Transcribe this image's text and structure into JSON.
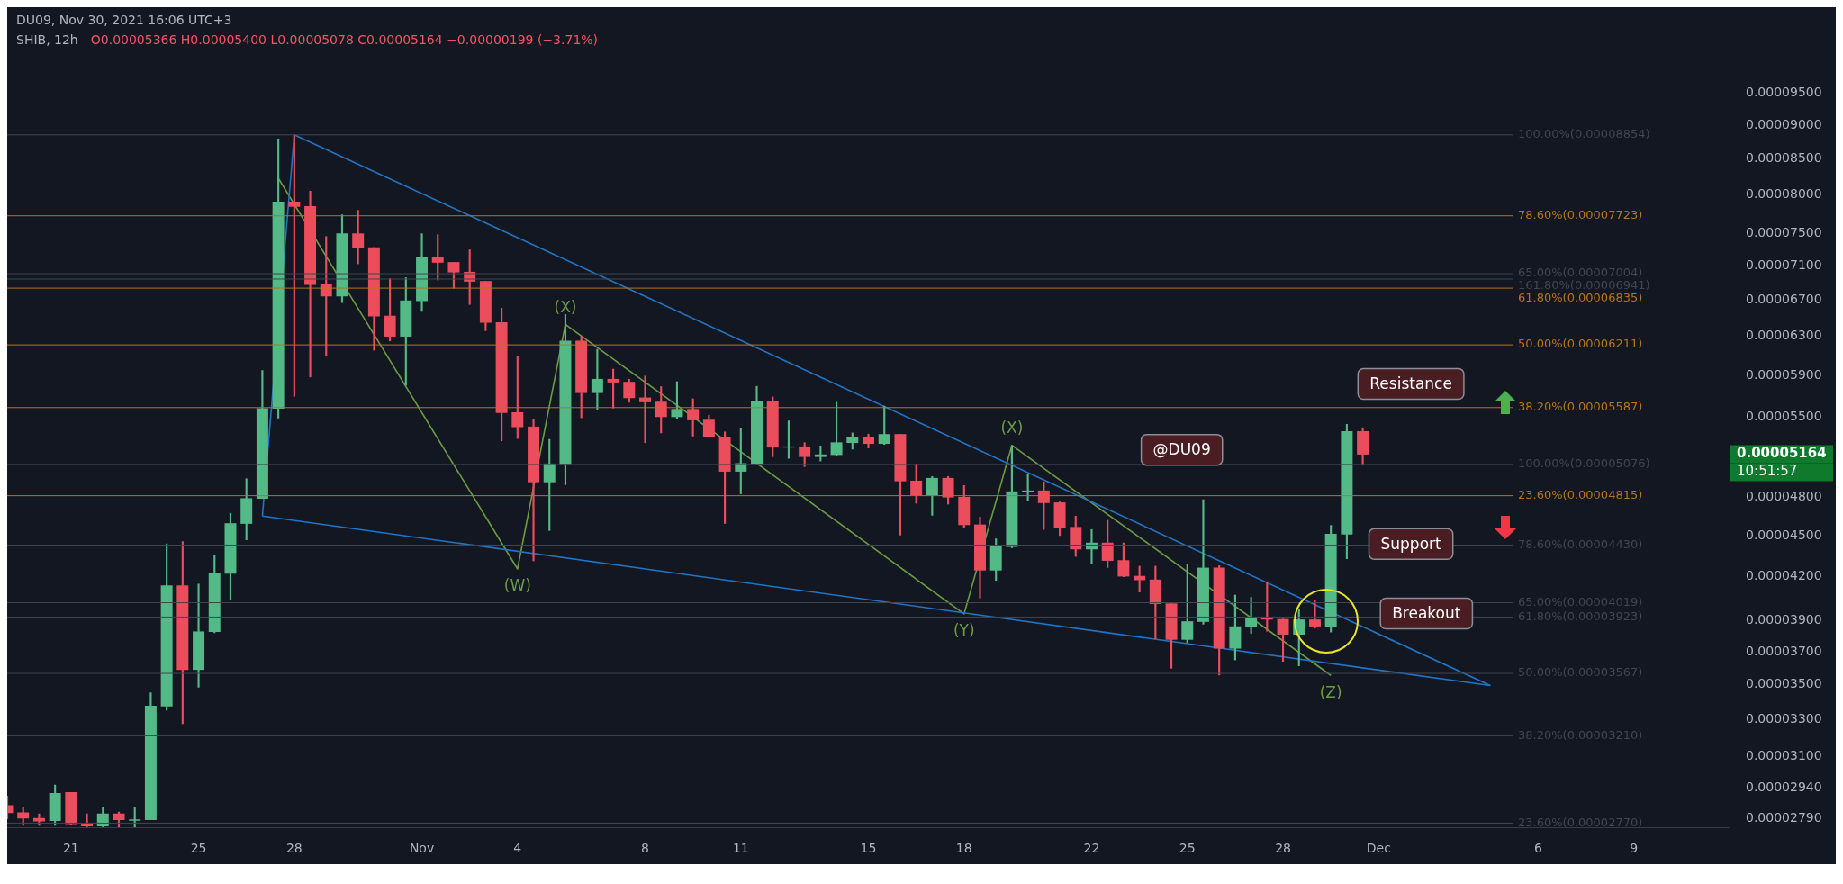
{
  "chart_data": {
    "type": "candlestick",
    "title": "SHIB, 12h",
    "subtitle": "O0.00005366 H0.00005400 L0.00005078 C0.00005164 −0.00000199 (−3.71%)",
    "x": [
      "2021-10-19",
      "2021-10-19T12:00",
      "2021-10-20",
      "2021-10-20T12:00",
      "2021-10-21",
      "2021-10-21T12:00",
      "2021-10-22",
      "2021-10-22T12:00",
      "2021-10-23",
      "2021-10-23T12:00",
      "2021-10-24",
      "2021-10-24T12:00",
      "2021-10-25",
      "2021-10-25T12:00",
      "2021-10-26",
      "2021-10-26T12:00",
      "2021-10-27",
      "2021-10-27T12:00",
      "2021-10-28",
      "2021-10-28T12:00",
      "2021-10-29",
      "2021-10-29T12:00",
      "2021-10-30",
      "2021-10-30T12:00",
      "2021-10-31",
      "2021-10-31T12:00",
      "2021-11-01",
      "2021-11-01T12:00",
      "2021-11-02",
      "2021-11-02T12:00",
      "2021-11-03",
      "2021-11-03T12:00",
      "2021-11-04",
      "2021-11-04T12:00",
      "2021-11-05",
      "2021-11-05T12:00",
      "2021-11-06",
      "2021-11-06T12:00",
      "2021-11-07",
      "2021-11-07T12:00",
      "2021-11-08",
      "2021-11-08T12:00",
      "2021-11-09",
      "2021-11-09T12:00",
      "2021-11-10",
      "2021-11-10T12:00",
      "2021-11-11",
      "2021-11-11T12:00",
      "2021-11-12",
      "2021-11-12T12:00",
      "2021-11-13",
      "2021-11-13T12:00",
      "2021-11-14",
      "2021-11-14T12:00",
      "2021-11-15",
      "2021-11-15T12:00",
      "2021-11-16",
      "2021-11-16T12:00",
      "2021-11-17",
      "2021-11-17T12:00",
      "2021-11-18",
      "2021-11-18T12:00",
      "2021-11-19",
      "2021-11-19T12:00",
      "2021-11-20",
      "2021-11-20T12:00",
      "2021-11-21",
      "2021-11-21T12:00",
      "2021-11-22",
      "2021-11-22T12:00",
      "2021-11-23",
      "2021-11-23T12:00",
      "2021-11-24",
      "2021-11-24T12:00",
      "2021-11-25",
      "2021-11-25T12:00",
      "2021-11-26",
      "2021-11-26T12:00",
      "2021-11-27",
      "2021-11-27T12:00",
      "2021-11-28",
      "2021-11-28T12:00",
      "2021-11-29",
      "2021-11-29T12:00",
      "2021-11-30",
      "2021-11-30T12:00"
    ],
    "ohlc": [
      [
        2.854e-05,
        2.9e-05,
        2.79e-05,
        2.819e-05
      ],
      [
        2.819e-05,
        2.847e-05,
        2.76e-05,
        2.793e-05
      ],
      [
        2.793e-05,
        2.814e-05,
        2.76e-05,
        2.78e-05
      ],
      [
        2.782e-05,
        2.954e-05,
        2.76e-05,
        2.913e-05
      ],
      [
        2.917e-05,
        2.917e-05,
        2.763e-05,
        2.767e-05
      ],
      [
        2.767e-05,
        2.814e-05,
        2.752e-05,
        2.756e-05
      ],
      [
        2.756e-05,
        2.843e-05,
        2.752e-05,
        2.814e-05
      ],
      [
        2.814e-05,
        2.822e-05,
        2.752e-05,
        2.786e-05
      ],
      [
        2.783e-05,
        2.847e-05,
        2.752e-05,
        2.786e-05
      ],
      [
        2.786e-05,
        3.452e-05,
        2.786e-05,
        3.375e-05
      ],
      [
        3.375e-05,
        4.439e-05,
        3.352e-05,
        4.137e-05
      ],
      [
        4.137e-05,
        4.456e-05,
        3.277e-05,
        3.59e-05
      ],
      [
        3.59e-05,
        4.148e-05,
        3.485e-05,
        3.827e-05
      ],
      [
        3.827e-05,
        4.356e-05,
        3.82e-05,
        4.223e-05
      ],
      [
        4.223e-05,
        4.674e-05,
        4.036e-05,
        4.594e-05
      ],
      [
        4.594e-05,
        4.955e-05,
        4.469e-05,
        4.792e-05
      ],
      [
        4.792e-05,
        5.948e-05,
        4.792e-05,
        5.579e-05
      ],
      [
        5.579e-05,
        8.793e-05,
        5.488e-05,
        7.907e-05
      ],
      [
        7.907e-05,
        8.854e-05,
        5.692e-05,
        7.845e-05
      ],
      [
        7.845e-05,
        8.05e-05,
        5.883e-05,
        6.877e-05
      ],
      [
        6.877e-05,
        7.458e-05,
        6.093e-05,
        6.744e-05
      ],
      [
        6.744e-05,
        7.736e-05,
        6.67e-05,
        7.493e-05
      ],
      [
        7.493e-05,
        7.797e-05,
        7.122e-05,
        7.32e-05
      ],
      [
        7.32e-05,
        7.32e-05,
        6.155e-05,
        6.521e-05
      ],
      [
        6.521e-05,
        6.946e-05,
        6.252e-05,
        6.301e-05
      ],
      [
        6.301e-05,
        6.957e-05,
        5.801e-05,
        6.691e-05
      ],
      [
        6.691e-05,
        7.493e-05,
        6.572e-05,
        7.195e-05
      ],
      [
        7.195e-05,
        7.481e-05,
        6.93e-05,
        7.139e-05
      ],
      [
        7.139e-05,
        7.139e-05,
        6.834e-05,
        7.023e-05
      ],
      [
        7.023e-05,
        7.292e-05,
        6.649e-05,
        6.914e-05
      ],
      [
        6.914e-05,
        6.914e-05,
        6.361e-05,
        6.45e-05
      ],
      [
        6.45e-05,
        6.608e-05,
        5.282e-05,
        5.54e-05
      ],
      [
        5.54e-05,
        6.093e-05,
        5.303e-05,
        5.408e-05
      ],
      [
        5.408e-05,
        5.476e-05,
        4.313e-05,
        4.928e-05
      ],
      [
        4.928e-05,
        5.295e-05,
        4.54e-05,
        5.081e-05
      ],
      [
        5.081e-05,
        6.537e-05,
        4.905e-05,
        6.252e-05
      ],
      [
        6.252e-05,
        6.301e-05,
        5.492e-05,
        5.729e-05
      ],
      [
        5.729e-05,
        6.165e-05,
        5.571e-05,
        5.861e-05
      ],
      [
        5.861e-05,
        5.962e-05,
        5.583e-05,
        5.832e-05
      ],
      [
        5.832e-05,
        5.861e-05,
        5.637e-05,
        5.68e-05
      ],
      [
        5.68e-05,
        5.892e-05,
        5.266e-05,
        5.64e-05
      ],
      [
        5.64e-05,
        5.788e-05,
        5.353e-05,
        5.501e-05
      ],
      [
        5.501e-05,
        5.837e-05,
        5.48e-05,
        5.571e-05
      ],
      [
        5.571e-05,
        5.671e-05,
        5.324e-05,
        5.471e-05
      ],
      [
        5.471e-05,
        5.514e-05,
        5.315e-05,
        5.315e-05
      ],
      [
        5.315e-05,
        5.362e-05,
        4.594e-05,
        5.017e-05
      ],
      [
        5.017e-05,
        5.391e-05,
        4.83e-05,
        5.084e-05
      ],
      [
        5.084e-05,
        5.791e-05,
        5.084e-05,
        5.645e-05
      ],
      [
        5.645e-05,
        5.689e-05,
        5.143e-05,
        5.225e-05
      ],
      [
        5.225e-05,
        5.463e-05,
        5.128e-05,
        5.23e-05
      ],
      [
        5.23e-05,
        5.266e-05,
        5.057e-05,
        5.143e-05
      ],
      [
        5.143e-05,
        5.237e-05,
        5.105e-05,
        5.16e-05
      ],
      [
        5.16e-05,
        5.637e-05,
        5.15e-05,
        5.266e-05
      ],
      [
        5.266e-05,
        5.353e-05,
        5.208e-05,
        5.311e-05
      ],
      [
        5.311e-05,
        5.343e-05,
        5.218e-05,
        5.258e-05
      ],
      [
        5.258e-05,
        5.601e-05,
        5.25e-05,
        5.34e-05
      ],
      [
        5.34e-05,
        5.34e-05,
        4.505e-05,
        4.936e-05
      ],
      [
        4.936e-05,
        5.081e-05,
        4.754e-05,
        4.821e-05
      ],
      [
        4.821e-05,
        4.974e-05,
        4.658e-05,
        4.959e-05
      ],
      [
        4.959e-05,
        4.974e-05,
        4.747e-05,
        4.803e-05
      ],
      [
        4.803e-05,
        4.898e-05,
        4.558e-05,
        4.584e-05
      ],
      [
        4.584e-05,
        4.644e-05,
        4.051e-05,
        4.246e-05
      ],
      [
        4.246e-05,
        4.477e-05,
        4.173e-05,
        4.418e-05
      ],
      [
        4.418e-05,
        5.241e-05,
        4.41e-05,
        4.848e-05
      ],
      [
        4.848e-05,
        4.994e-05,
        4.773e-05,
        4.855e-05
      ],
      [
        4.855e-05,
        4.928e-05,
        4.548e-05,
        4.758e-05
      ],
      [
        4.758e-05,
        4.765e-05,
        4.502e-05,
        4.565e-05
      ],
      [
        4.565e-05,
        4.652e-05,
        4.346e-05,
        4.4e-05
      ],
      [
        4.4e-05,
        4.548e-05,
        4.295e-05,
        4.446e-05
      ],
      [
        4.446e-05,
        4.619e-05,
        4.265e-05,
        4.316e-05
      ],
      [
        4.316e-05,
        4.446e-05,
        4.199e-05,
        4.203e-05
      ],
      [
        4.203e-05,
        4.275e-05,
        4.092e-05,
        4.177e-05
      ],
      [
        4.177e-05,
        4.275e-05,
        3.78e-05,
        4.012e-05
      ],
      [
        4.012e-05,
        4.012e-05,
        3.598e-05,
        3.777e-05
      ],
      [
        3.777e-05,
        4.289e-05,
        3.757e-05,
        3.893e-05
      ],
      [
        3.893e-05,
        4.783e-05,
        3.876e-05,
        4.262e-05
      ],
      [
        4.262e-05,
        4.279e-05,
        3.557e-05,
        3.721e-05
      ],
      [
        3.721e-05,
        4.071e-05,
        3.649e-05,
        3.86e-05
      ],
      [
        3.86e-05,
        4.055e-05,
        3.815e-05,
        3.921e-05
      ],
      [
        3.921e-05,
        4.164e-05,
        3.83e-05,
        3.908e-05
      ],
      [
        3.908e-05,
        3.91e-05,
        3.64e-05,
        3.81e-05
      ],
      [
        3.81e-05,
        3.973e-05,
        3.613e-05,
        3.905e-05
      ],
      [
        3.905e-05,
        4.036e-05,
        3.85e-05,
        3.863e-05
      ],
      [
        3.863e-05,
        4.579e-05,
        3.825e-05,
        4.512e-05
      ],
      [
        4.512e-05,
        5.432e-05,
        4.329e-05,
        5.366e-05
      ],
      [
        5.366e-05,
        5.4e-05,
        5.078e-05,
        5.164e-05
      ]
    ],
    "colors": [
      "#eb4d5c",
      "#eb4d5c",
      "#eb4d5c",
      "#53b987",
      "#eb4d5c",
      "#eb4d5c",
      "#53b987",
      "#eb4d5c",
      "#53b987",
      "#53b987",
      "#53b987",
      "#eb4d5c",
      "#53b987",
      "#53b987",
      "#53b987",
      "#53b987",
      "#53b987",
      "#53b987",
      "#eb4d5c",
      "#eb4d5c",
      "#eb4d5c",
      "#53b987",
      "#eb4d5c",
      "#eb4d5c",
      "#eb4d5c",
      "#53b987",
      "#53b987",
      "#eb4d5c",
      "#eb4d5c",
      "#eb4d5c",
      "#eb4d5c",
      "#eb4d5c",
      "#eb4d5c",
      "#eb4d5c",
      "#53b987",
      "#53b987",
      "#eb4d5c",
      "#53b987",
      "#eb4d5c",
      "#eb4d5c",
      "#eb4d5c",
      "#eb4d5c",
      "#53b987",
      "#eb4d5c",
      "#eb4d5c",
      "#eb4d5c",
      "#53b987",
      "#53b987",
      "#eb4d5c",
      "#53b987",
      "#eb4d5c",
      "#53b987",
      "#53b987",
      "#53b987",
      "#eb4d5c",
      "#53b987",
      "#eb4d5c",
      "#eb4d5c",
      "#53b987",
      "#eb4d5c",
      "#eb4d5c",
      "#eb4d5c",
      "#53b987",
      "#53b987",
      "#53b987",
      "#eb4d5c",
      "#eb4d5c",
      "#eb4d5c",
      "#53b987",
      "#eb4d5c",
      "#eb4d5c",
      "#eb4d5c",
      "#eb4d5c",
      "#eb4d5c",
      "#53b987",
      "#53b987",
      "#eb4d5c",
      "#53b987",
      "#53b987",
      "#eb4d5c",
      "#eb4d5c",
      "#53b987",
      "#eb4d5c",
      "#53b987",
      "#53b987",
      "#eb4d5c"
    ],
    "series": [
      {
        "type": "line",
        "color": "#2175c6",
        "x": [
          "2021-10-28",
          "2021-12-04T12:00"
        ],
        "values": [
          8.854e-05,
          3.495e-05
        ]
      },
      {
        "type": "line",
        "color": "#2175c6",
        "x": [
          "2021-10-27",
          "2021-12-04T12:00"
        ],
        "values": [
          4.652e-05,
          3.495e-05
        ]
      },
      {
        "type": "line",
        "color": "#2175c6",
        "x": [
          "2021-10-27",
          "2021-10-28"
        ],
        "values": [
          4.652e-05,
          8.854e-05
        ]
      },
      {
        "type": "line",
        "color": "#6b9c43",
        "x": [
          "2021-10-27T12:00",
          "2021-11-04",
          "2021-11-05T12:00",
          "2021-11-18",
          "2021-11-19T12:00",
          "2021-11-29T12:00"
        ],
        "values": [
          8.229e-05,
          4.255e-05,
          6.43e-05,
          3.944e-05,
          5.242e-05,
          3.555e-05
        ]
      }
    ],
    "xlim": [
      "2021-10-19",
      "2021-12-12"
    ],
    "xticks": [
      {
        "value": "2021-10-21",
        "label": "21"
      },
      {
        "value": "2021-10-25",
        "label": "25"
      },
      {
        "value": "2021-10-28",
        "label": "28"
      },
      {
        "value": "2021-11-01",
        "label": "Nov"
      },
      {
        "value": "2021-11-04",
        "label": "4"
      },
      {
        "value": "2021-11-08",
        "label": "8"
      },
      {
        "value": "2021-11-11",
        "label": "11"
      },
      {
        "value": "2021-11-15",
        "label": "15"
      },
      {
        "value": "2021-11-18",
        "label": "18"
      },
      {
        "value": "2021-11-22",
        "label": "22"
      },
      {
        "value": "2021-11-25",
        "label": "25"
      },
      {
        "value": "2021-11-28",
        "label": "28"
      },
      {
        "value": "2021-12-01",
        "label": "Dec"
      },
      {
        "value": "2021-12-06",
        "label": "6"
      },
      {
        "value": "2021-12-09",
        "label": "9"
      }
    ],
    "ylim": [
      2.75e-05,
      9.72e-05
    ],
    "log": true,
    "yticks": [
      {
        "value": 2.79e-05,
        "label": "0.00002790"
      },
      {
        "value": 2.94e-05,
        "label": "0.00002940"
      },
      {
        "value": 3.1e-05,
        "label": "0.00003100"
      },
      {
        "value": 3.3e-05,
        "label": "0.00003300"
      },
      {
        "value": 3.5e-05,
        "label": "0.00003500"
      },
      {
        "value": 3.7e-05,
        "label": "0.00003700"
      },
      {
        "value": 3.9e-05,
        "label": "0.00003900"
      },
      {
        "value": 4.2e-05,
        "label": "0.00004200"
      },
      {
        "value": 4.5e-05,
        "label": "0.00004500"
      },
      {
        "value": 4.8e-05,
        "label": "0.00004800"
      },
      {
        "value": 5.5e-05,
        "label": "0.00005500"
      },
      {
        "value": 5.9e-05,
        "label": "0.00005900"
      },
      {
        "value": 6.3e-05,
        "label": "0.00006300"
      },
      {
        "value": 6.7e-05,
        "label": "0.00006700"
      },
      {
        "value": 7.1e-05,
        "label": "0.00007100"
      },
      {
        "value": 7.5e-05,
        "label": "0.00007500"
      },
      {
        "value": 8e-05,
        "label": "0.00008000"
      },
      {
        "value": 8.5e-05,
        "label": "0.00008500"
      },
      {
        "value": 9e-05,
        "label": "0.00009000"
      },
      {
        "value": 9.5e-05,
        "label": "0.00009500"
      }
    ],
    "ref_lines": [
      {
        "axis": "y",
        "value": 8.854e-05,
        "label": "100.00%(0.00008854)",
        "color": "#434651"
      },
      {
        "axis": "y",
        "value": 7.723e-05,
        "label": "78.60%(0.00007723)",
        "color": "#b8741a"
      },
      {
        "axis": "y",
        "value": 7.004e-05,
        "label": "65.00%(0.00007004)",
        "color": "#434651"
      },
      {
        "axis": "y",
        "value": 6.941e-05,
        "label": "161.80%(0.00006941)",
        "color": "#434651"
      },
      {
        "axis": "y",
        "value": 6.835e-05,
        "label": "61.80%(0.00006835)",
        "color": "#b8741a"
      },
      {
        "axis": "y",
        "value": 6.211e-05,
        "label": "50.00%(0.00006211)",
        "color": "#b8741a"
      },
      {
        "axis": "y",
        "value": 5.587e-05,
        "label": "38.20%(0.00005587)",
        "color": "#b8741a"
      },
      {
        "axis": "y",
        "value": 5.076e-05,
        "label": "100.00%(0.00005076)",
        "color": "#434651"
      },
      {
        "axis": "y",
        "value": 4.815e-05,
        "label": "23.60%(0.00004815)",
        "color": "#b8741a"
      },
      {
        "axis": "y",
        "value": 4.43e-05,
        "label": "78.60%(0.00004430)",
        "color": "#434651"
      },
      {
        "axis": "y",
        "value": 4.019e-05,
        "label": "65.00%(0.00004019)",
        "color": "#434651"
      },
      {
        "axis": "y",
        "value": 3.923e-05,
        "label": "61.80%(0.00003923)",
        "color": "#434651"
      },
      {
        "axis": "y",
        "value": 3.567e-05,
        "label": "50.00%(0.00003567)",
        "color": "#434651"
      },
      {
        "axis": "y",
        "value": 3.21e-05,
        "label": "38.20%(0.00003210)",
        "color": "#434651"
      },
      {
        "axis": "y",
        "value": 2.77e-05,
        "label": "23.60%(0.00002770)",
        "color": "#434651"
      }
    ],
    "annotations": [
      "DU09, Nov 30, 2021 16:06 UTC+3",
      {
        "text": "(W)",
        "x": "2021-11-04",
        "y": 4.255e-05
      },
      {
        "text": "(X)",
        "x": "2021-11-05T12:00",
        "y": 6.43e-05
      },
      {
        "text": "(Y)",
        "x": "2021-11-18",
        "y": 3.944e-05
      },
      {
        "text": "(X)",
        "x": "2021-11-19T12:00",
        "y": 5.242e-05
      },
      {
        "text": "(Z)",
        "x": "2021-11-29T12:00",
        "y": 3.555e-05
      },
      "@DU09",
      "Resistance",
      "Support",
      "Breakout",
      "0.00005164",
      "10:51:57"
    ]
  }
}
